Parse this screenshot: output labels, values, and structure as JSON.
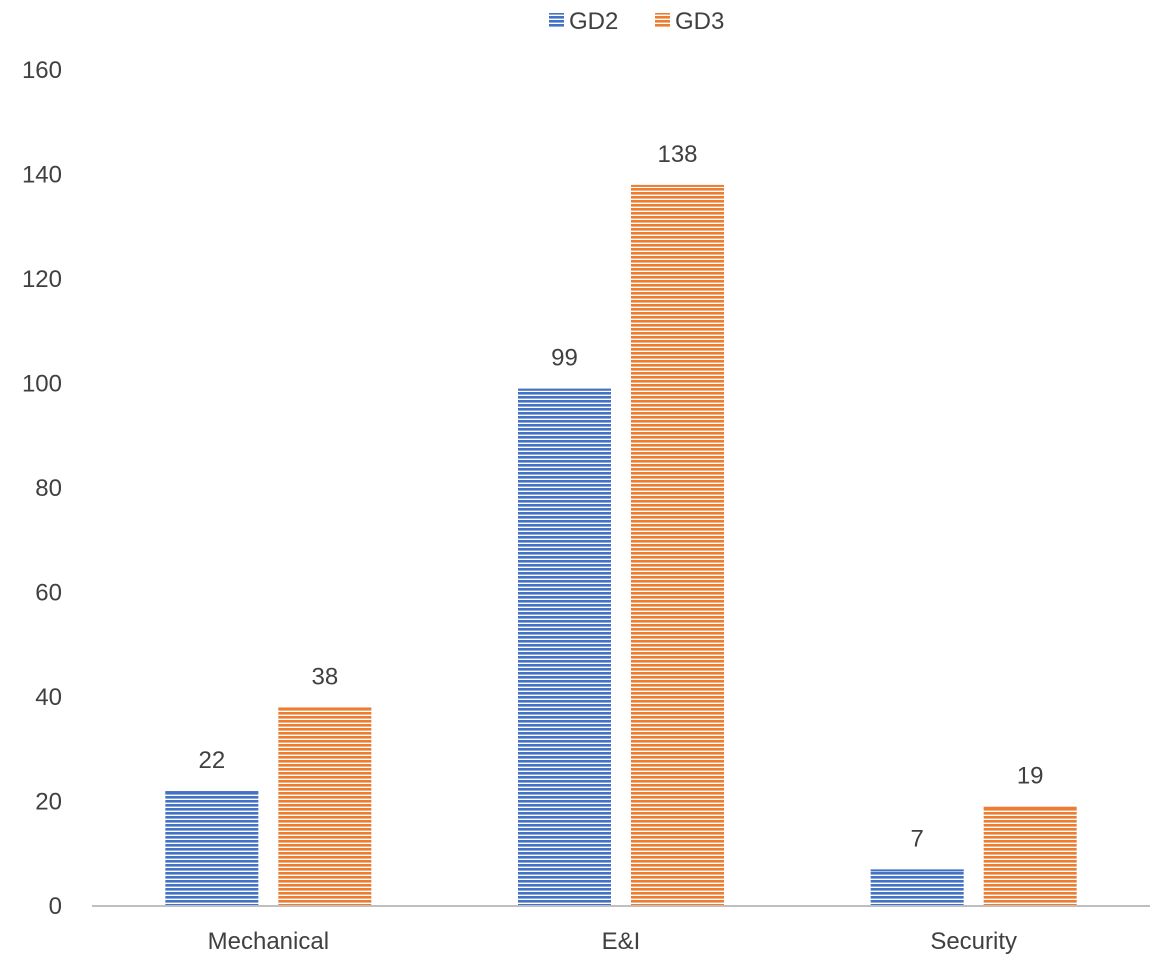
{
  "chart_data": {
    "type": "bar",
    "categories": [
      "Mechanical",
      "E&I",
      "Security"
    ],
    "series": [
      {
        "name": "GD2",
        "values": [
          22,
          99,
          7
        ],
        "color": "#4472C4",
        "pattern": "horizontal-stripes"
      },
      {
        "name": "GD3",
        "values": [
          38,
          138,
          19
        ],
        "color": "#ED7D31",
        "pattern": "horizontal-stripes"
      }
    ],
    "title": "",
    "xlabel": "",
    "ylabel": "",
    "ylim": [
      0,
      160
    ],
    "yticks": [
      "0",
      "20",
      "40",
      "60",
      "80",
      "100",
      "120",
      "140",
      "160"
    ],
    "grid": false,
    "legend_position": "top-center",
    "data_labels": true,
    "colors": {
      "axis": "#BFBFBF",
      "text": "#404040",
      "stripe_gap": "#FFFFFF"
    }
  }
}
